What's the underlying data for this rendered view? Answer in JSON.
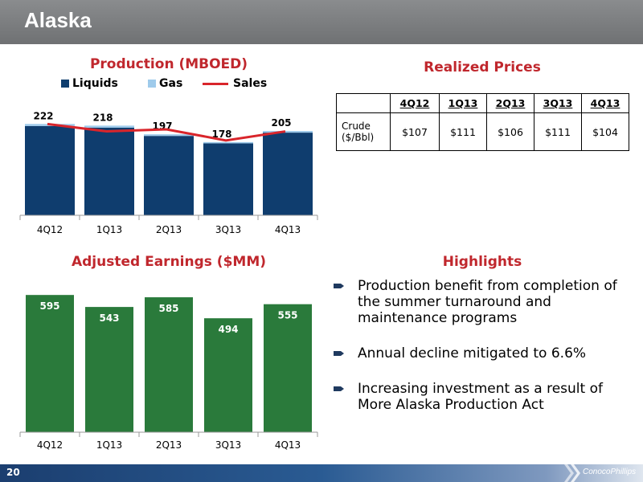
{
  "slide": {
    "title": "Alaska",
    "page_number": "20",
    "logo_text": "ConocoPhillips"
  },
  "colors": {
    "liquids": "#0f3d6e",
    "gas": "#9fcbeb",
    "sales": "#d9252b",
    "earnings": "#2a7a3b",
    "title_red": "#c0272d"
  },
  "production": {
    "title": "Production (MBOED)",
    "legend": {
      "liquids": "Liquids",
      "gas": "Gas",
      "sales": "Sales"
    }
  },
  "earnings": {
    "title": "Adjusted Earnings ($MM)"
  },
  "prices": {
    "title": "Realized Prices",
    "columns": [
      "4Q12",
      "1Q13",
      "2Q13",
      "3Q13",
      "4Q13"
    ],
    "row_label": "Crude ($/Bbl)",
    "values": [
      "$107",
      "$111",
      "$106",
      "$111",
      "$104"
    ]
  },
  "highlights": {
    "title": "Highlights",
    "items": [
      "Production benefit from completion of the summer turnaround and maintenance programs",
      "Annual decline mitigated to 6.6%",
      "Increasing investment as a result of More Alaska Production Act"
    ]
  },
  "chart_data": [
    {
      "type": "bar",
      "title": "Production (MBOED)",
      "categories": [
        "4Q12",
        "1Q13",
        "2Q13",
        "3Q13",
        "4Q13"
      ],
      "stacked": true,
      "series": [
        {
          "name": "Liquids",
          "values": [
            217,
            213,
            193,
            175,
            201
          ]
        },
        {
          "name": "Gas",
          "values": [
            5,
            5,
            4,
            3,
            4
          ]
        },
        {
          "name": "Sales",
          "kind": "line",
          "values": [
            222,
            204,
            209,
            182,
            204
          ]
        }
      ],
      "totals": [
        222,
        218,
        197,
        178,
        205
      ],
      "ylim": [
        0,
        250
      ],
      "legend": "top"
    },
    {
      "type": "bar",
      "title": "Adjusted Earnings ($MM)",
      "categories": [
        "4Q12",
        "1Q13",
        "2Q13",
        "3Q13",
        "4Q13"
      ],
      "values": [
        595,
        543,
        585,
        494,
        555
      ],
      "ylim": [
        0,
        620
      ]
    }
  ]
}
